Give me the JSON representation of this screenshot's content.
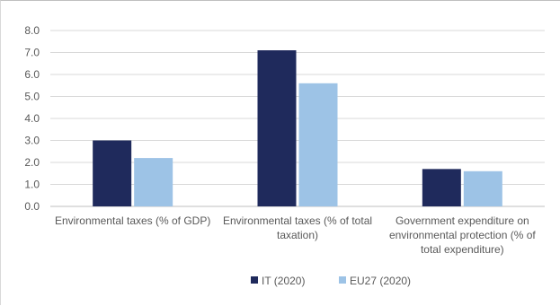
{
  "chart_data": {
    "type": "bar",
    "title": "",
    "xlabel": "",
    "ylabel": "",
    "ylim": [
      0,
      8
    ],
    "yticks": [
      "0.0",
      "1.0",
      "2.0",
      "3.0",
      "4.0",
      "5.0",
      "6.0",
      "7.0",
      "8.0"
    ],
    "grid": true,
    "legend_position": "bottom",
    "categories": [
      [
        "Environmental taxes (% of GDP)"
      ],
      [
        "Environmental taxes (% of total",
        "taxation)"
      ],
      [
        "Government expenditure on",
        "environmental protection (% of",
        "total expenditure)"
      ]
    ],
    "series": [
      {
        "name": "IT (2020)",
        "color": "#1f2a5c",
        "values": [
          3.0,
          7.1,
          1.7
        ]
      },
      {
        "name": "EU27 (2020)",
        "color": "#9dc3e6",
        "values": [
          2.2,
          5.6,
          1.6
        ]
      }
    ]
  }
}
